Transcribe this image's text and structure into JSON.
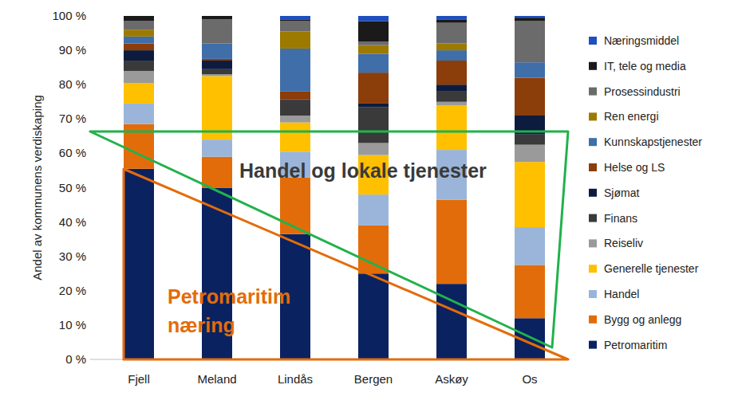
{
  "chart_data": {
    "type": "bar",
    "stacked": true,
    "ylabel": "Andel av kommunens verdiskaping",
    "annotations": [
      "Handel og lokale tjenester",
      "Petromaritim\nnæring"
    ],
    "categories": [
      "Fjell",
      "Meland",
      "Lindås",
      "Bergen",
      "Askøy",
      "Os"
    ],
    "ylim": [
      0,
      100
    ],
    "yticks": [
      {
        "value": 0,
        "label": "0 %"
      },
      {
        "value": 10,
        "label": "10 %"
      },
      {
        "value": 20,
        "label": "20 %"
      },
      {
        "value": 30,
        "label": "30 %"
      },
      {
        "value": 40,
        "label": "40 %"
      },
      {
        "value": 50,
        "label": "50 %"
      },
      {
        "value": 60,
        "label": "60 %"
      },
      {
        "value": 70,
        "label": "70 %"
      },
      {
        "value": 80,
        "label": "80 %"
      },
      {
        "value": 90,
        "label": "90 %"
      },
      {
        "value": 100,
        "label": "100 %"
      }
    ],
    "grid": false,
    "legend": "right",
    "series": [
      {
        "name": "Petromaritim",
        "color": "#0b2260",
        "values": [
          55.5,
          50,
          36.5,
          25,
          22,
          12
        ]
      },
      {
        "name": "Bygg og anlegg",
        "color": "#e36c0a",
        "values": [
          13,
          9,
          16.5,
          14,
          24.5,
          15.5
        ]
      },
      {
        "name": "Handel",
        "color": "#9ab5d9",
        "values": [
          6,
          5,
          7.5,
          9,
          14.5,
          11
        ]
      },
      {
        "name": "Generelle tjenester",
        "color": "#ffc000",
        "values": [
          6,
          18.5,
          8.5,
          11.5,
          13,
          19
        ]
      },
      {
        "name": "Reiseliv",
        "color": "#9a9a9a",
        "values": [
          3.5,
          0.5,
          2,
          3.5,
          1,
          5
        ]
      },
      {
        "name": "Finans",
        "color": "#3a3a3a",
        "values": [
          3,
          1.5,
          4,
          10.5,
          3,
          3
        ]
      },
      {
        "name": "Sjømat",
        "color": "#0d1b3e",
        "values": [
          3,
          2.5,
          0.5,
          1,
          2,
          5.5
        ]
      },
      {
        "name": "Helse og LS",
        "color": "#8b3d0a",
        "values": [
          2,
          0.5,
          2.5,
          9,
          7,
          11
        ]
      },
      {
        "name": "Kunnskapstjenester",
        "color": "#3f6ea8",
        "values": [
          2,
          4.5,
          12.5,
          5.5,
          3,
          4.5
        ]
      },
      {
        "name": "Ren energi",
        "color": "#9c7a00",
        "values": [
          2,
          0,
          5,
          2.5,
          2,
          0
        ]
      },
      {
        "name": "Prosessindustri",
        "color": "#6b6b6b",
        "values": [
          2.5,
          7,
          3,
          1,
          6,
          12
        ]
      },
      {
        "name": "IT, tele og media",
        "color": "#1a1a1a",
        "values": [
          1.5,
          1,
          0.5,
          6,
          1,
          1
        ]
      },
      {
        "name": "Næringsmiddel",
        "color": "#1f4fbf",
        "values": [
          0,
          0,
          1,
          1.5,
          1,
          0.5
        ]
      }
    ]
  }
}
